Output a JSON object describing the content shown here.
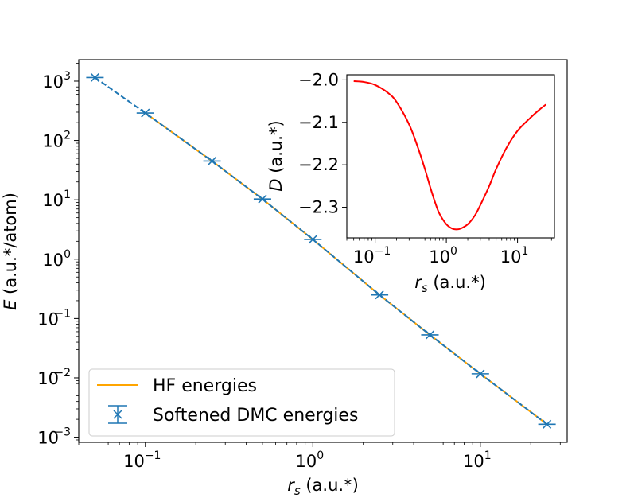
{
  "chart_data": [
    {
      "type": "line",
      "title": "",
      "xlabel": "r_s (a.u.*)",
      "ylabel": "E (a.u.*/atom)",
      "xscale": "log",
      "yscale": "log",
      "xlim": [
        0.04,
        33
      ],
      "ylim": [
        0.00082,
        2300
      ],
      "xticks": [
        {
          "value": 0.1,
          "exp": "-1"
        },
        {
          "value": 1,
          "exp": "0"
        },
        {
          "value": 10,
          "exp": "1"
        }
      ],
      "yticks": [
        {
          "value": 0.001,
          "exp": "-3"
        },
        {
          "value": 0.01,
          "exp": "-2"
        },
        {
          "value": 0.1,
          "exp": "-1"
        },
        {
          "value": 1,
          "exp": "0"
        },
        {
          "value": 10,
          "exp": "1"
        },
        {
          "value": 100,
          "exp": "2"
        },
        {
          "value": 1000,
          "exp": "3"
        }
      ],
      "legend_position": "lower-left",
      "series": [
        {
          "name": "HF energies",
          "style": "solid line",
          "color": "#ffa500",
          "x": [
            0.1,
            0.25,
            0.5,
            1,
            2.5,
            5,
            10,
            25
          ],
          "y": [
            290,
            45,
            10.3,
            2.15,
            0.25,
            0.053,
            0.0117,
            0.00165
          ]
        },
        {
          "name": "Softened DMC energies",
          "style": "dashed line with x markers and error bars",
          "color": "#1f77b4",
          "x": [
            0.05,
            0.1,
            0.25,
            0.5,
            1,
            2.5,
            5,
            10,
            25
          ],
          "y": [
            1150,
            290,
            45,
            10.3,
            2.15,
            0.25,
            0.053,
            0.0117,
            0.00165
          ]
        }
      ]
    },
    {
      "type": "line",
      "title": "",
      "xlabel": "r_s (a.u.*)",
      "ylabel": "D (a.u.*)",
      "xscale": "log",
      "xlim": [
        0.04,
        33
      ],
      "ylim": [
        -2.372,
        -1.988
      ],
      "xticks": [
        {
          "value": 0.1,
          "exp": "-1"
        },
        {
          "value": 1,
          "exp": "0"
        },
        {
          "value": 10,
          "exp": "1"
        }
      ],
      "yticks": [
        -2.0,
        -2.1,
        -2.2,
        -2.3
      ],
      "ytick_labels": [
        "−2.0",
        "−2.1",
        "−2.2",
        "−2.3"
      ],
      "series": [
        {
          "name": "D",
          "color": "#ff0000",
          "x": [
            0.05,
            0.07,
            0.1,
            0.15,
            0.2,
            0.3,
            0.4,
            0.5,
            0.6,
            0.7,
            0.8,
            1.0,
            1.2,
            1.4,
            1.6,
            2.0,
            2.5,
            3.0,
            4.0,
            5.0,
            7.0,
            10,
            15,
            20,
            25
          ],
          "y": [
            -2.003,
            -2.005,
            -2.012,
            -2.03,
            -2.052,
            -2.105,
            -2.16,
            -2.21,
            -2.255,
            -2.29,
            -2.315,
            -2.34,
            -2.35,
            -2.352,
            -2.35,
            -2.34,
            -2.32,
            -2.295,
            -2.25,
            -2.21,
            -2.16,
            -2.12,
            -2.09,
            -2.071,
            -2.058
          ]
        }
      ]
    }
  ]
}
